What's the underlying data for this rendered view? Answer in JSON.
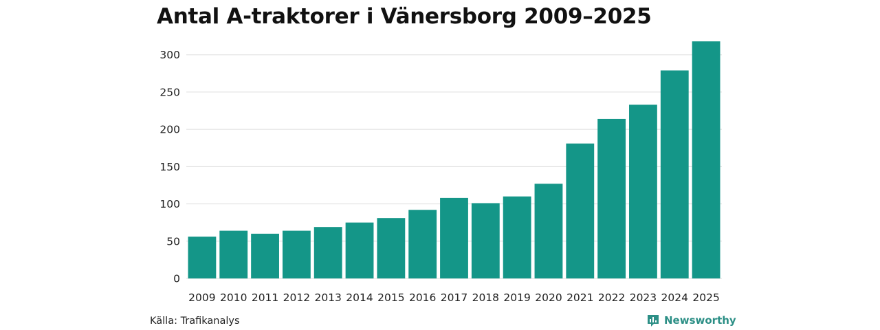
{
  "chart_data": {
    "type": "bar",
    "title": "Antal A-traktorer i Vänersborg 2009–2025",
    "categories": [
      "2009",
      "2010",
      "2011",
      "2012",
      "2013",
      "2014",
      "2015",
      "2016",
      "2017",
      "2018",
      "2019",
      "2020",
      "2021",
      "2022",
      "2023",
      "2024",
      "2025"
    ],
    "values": [
      56,
      64,
      60,
      64,
      69,
      75,
      81,
      92,
      108,
      101,
      110,
      127,
      181,
      214,
      233,
      279,
      318
    ],
    "xlabel": "",
    "ylabel": "",
    "ylim": [
      0,
      320
    ],
    "yticks": [
      0,
      50,
      100,
      150,
      200,
      250,
      300
    ],
    "grid": true,
    "bar_color": "#149688",
    "grid_color": "#dddddd"
  },
  "footer": {
    "source": "Källa: Trafikanalys",
    "brand": "Newsworthy",
    "brand_color": "#2c8f86",
    "brand_icon": "newsworthy-logo-icon"
  }
}
